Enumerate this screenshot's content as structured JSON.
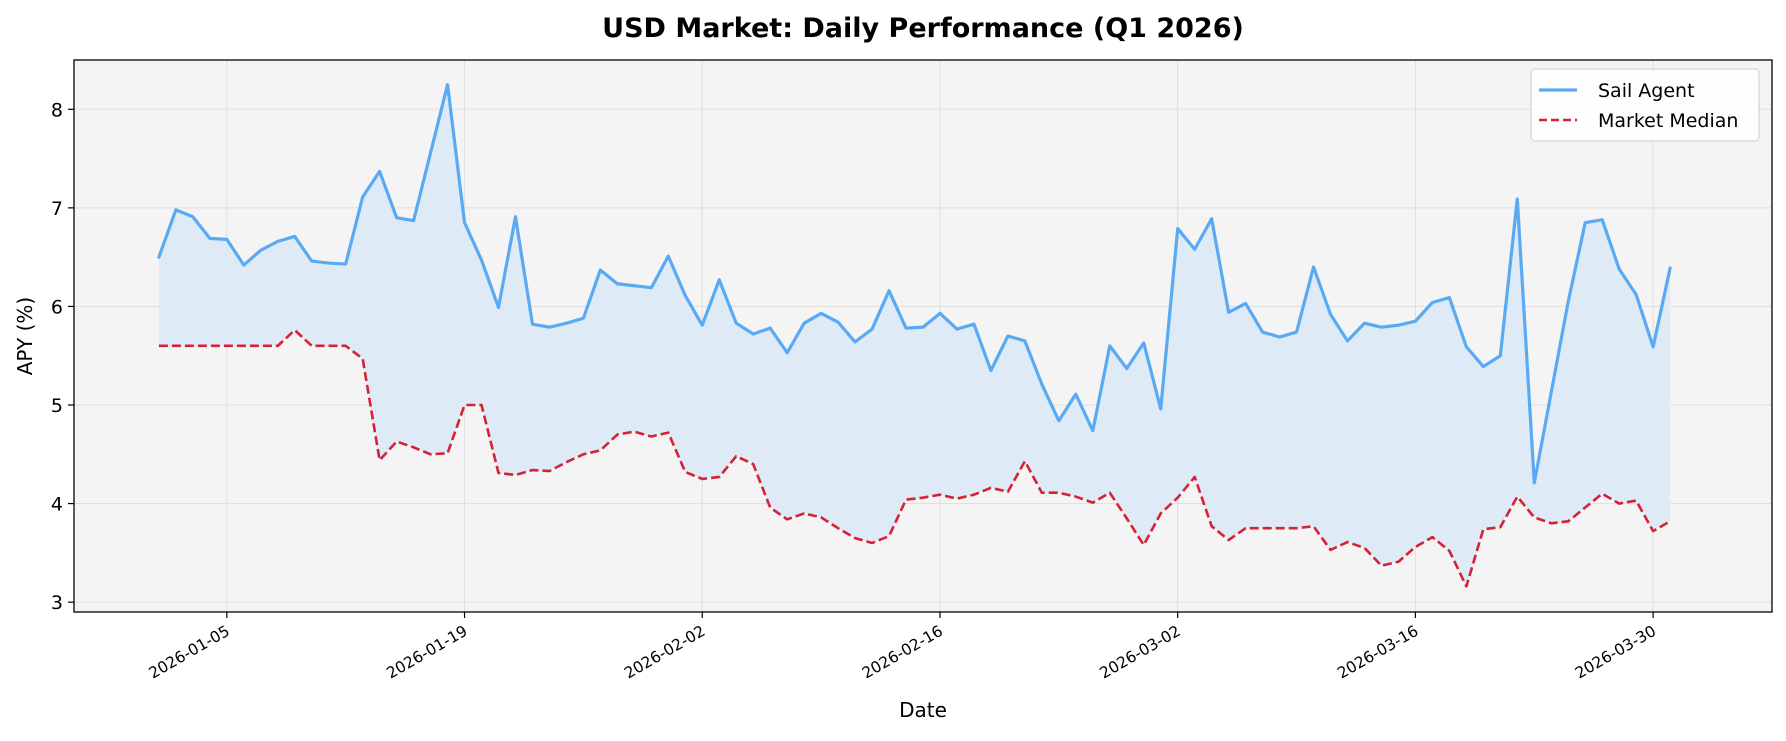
{
  "chart_data": {
    "type": "line",
    "title": "USD Market: Daily Performance (Q1 2026)",
    "xlabel": "Date",
    "ylabel": "APY (%)",
    "x_start": "2026-01-01",
    "xlim": [
      "2025-12-27",
      "2026-04-06"
    ],
    "ylim": [
      2.9,
      8.5
    ],
    "x_ticks": [
      "2026-01-05",
      "2026-01-19",
      "2026-02-02",
      "2026-02-16",
      "2026-03-02",
      "2026-03-16",
      "2026-03-30"
    ],
    "y_ticks": [
      3,
      4,
      5,
      6,
      7,
      8
    ],
    "grid": true,
    "legend_position": "top-right",
    "fill_between_series": true,
    "colors": {
      "sail_agent": "#5aaaf3",
      "market_median": "#d62236",
      "fill": "#dce9f6",
      "axes_background": "#f4f4f4"
    },
    "series": [
      {
        "name": "Sail Agent",
        "style": "solid",
        "values": [
          6.5,
          6.98,
          6.91,
          6.69,
          6.68,
          6.42,
          6.57,
          6.66,
          6.71,
          6.46,
          6.44,
          6.43,
          7.11,
          7.37,
          6.9,
          6.87,
          7.56,
          8.25,
          6.85,
          6.47,
          5.99,
          6.91,
          5.82,
          5.79,
          5.83,
          5.88,
          6.37,
          6.23,
          6.21,
          6.19,
          6.51,
          6.11,
          5.81,
          6.27,
          5.83,
          5.72,
          5.78,
          5.53,
          5.83,
          5.93,
          5.84,
          5.64,
          5.77,
          6.16,
          5.78,
          5.79,
          5.93,
          5.77,
          5.82,
          5.35,
          5.7,
          5.65,
          5.21,
          4.84,
          5.11,
          4.74,
          5.6,
          5.37,
          5.63,
          4.96,
          6.79,
          6.58,
          6.89,
          5.94,
          6.03,
          5.74,
          5.69,
          5.74,
          6.4,
          5.92,
          5.65,
          5.83,
          5.79,
          5.81,
          5.85,
          6.04,
          6.09,
          5.59,
          5.39,
          5.5,
          7.09,
          4.21,
          5.13,
          6.05,
          6.85,
          6.88,
          6.38,
          6.12,
          5.59,
          6.39
        ]
      },
      {
        "name": "Market Median",
        "style": "dashed",
        "values": [
          5.6,
          5.6,
          5.6,
          5.6,
          5.6,
          5.6,
          5.6,
          5.6,
          5.76,
          5.6,
          5.6,
          5.6,
          5.47,
          4.44,
          4.63,
          4.57,
          4.5,
          4.51,
          5.0,
          5.0,
          4.31,
          4.29,
          4.34,
          4.33,
          4.42,
          4.5,
          4.54,
          4.7,
          4.73,
          4.68,
          4.72,
          4.32,
          4.25,
          4.27,
          4.48,
          4.4,
          3.96,
          3.84,
          3.9,
          3.86,
          3.75,
          3.65,
          3.6,
          3.67,
          4.04,
          4.06,
          4.09,
          4.05,
          4.09,
          4.16,
          4.12,
          4.43,
          4.11,
          4.11,
          4.07,
          4.01,
          4.11,
          3.85,
          3.58,
          3.9,
          4.06,
          4.27,
          3.77,
          3.63,
          3.75,
          3.75,
          3.75,
          3.75,
          3.77,
          3.53,
          3.61,
          3.55,
          3.37,
          3.41,
          3.56,
          3.66,
          3.52,
          3.16,
          3.74,
          3.76,
          4.07,
          3.86,
          3.8,
          3.82,
          3.96,
          4.1,
          4.0,
          4.03,
          3.72,
          3.82
        ]
      }
    ]
  }
}
